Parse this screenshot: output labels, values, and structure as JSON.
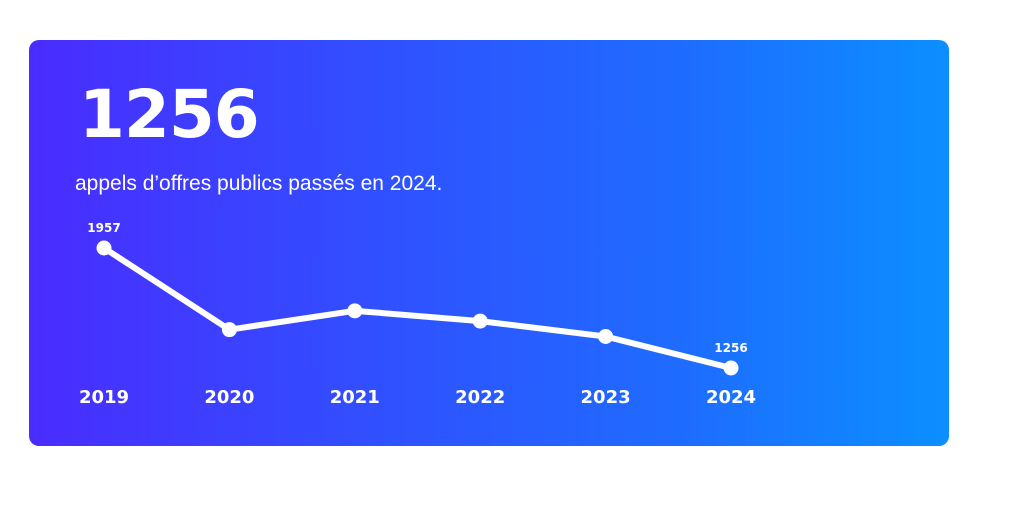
{
  "headline": {
    "value": "1256",
    "caption": "appels d’offres publics passés en 2024."
  },
  "colors": {
    "gradient_start": "#4a2cff",
    "gradient_end": "#0b8fff",
    "line": "#ffffff",
    "text": "#ffffff"
  },
  "chart_data": {
    "type": "line",
    "title": "",
    "xlabel": "",
    "ylabel": "",
    "categories": [
      "2019",
      "2020",
      "2021",
      "2022",
      "2023",
      "2024"
    ],
    "values": [
      1957,
      1480,
      1590,
      1530,
      1440,
      1256
    ],
    "data_labels": [
      {
        "index": 0,
        "text": "1957"
      },
      {
        "index": 5,
        "text": "1256"
      }
    ],
    "ylim": [
      1150,
      2050
    ],
    "grid": false,
    "legend": "none"
  }
}
